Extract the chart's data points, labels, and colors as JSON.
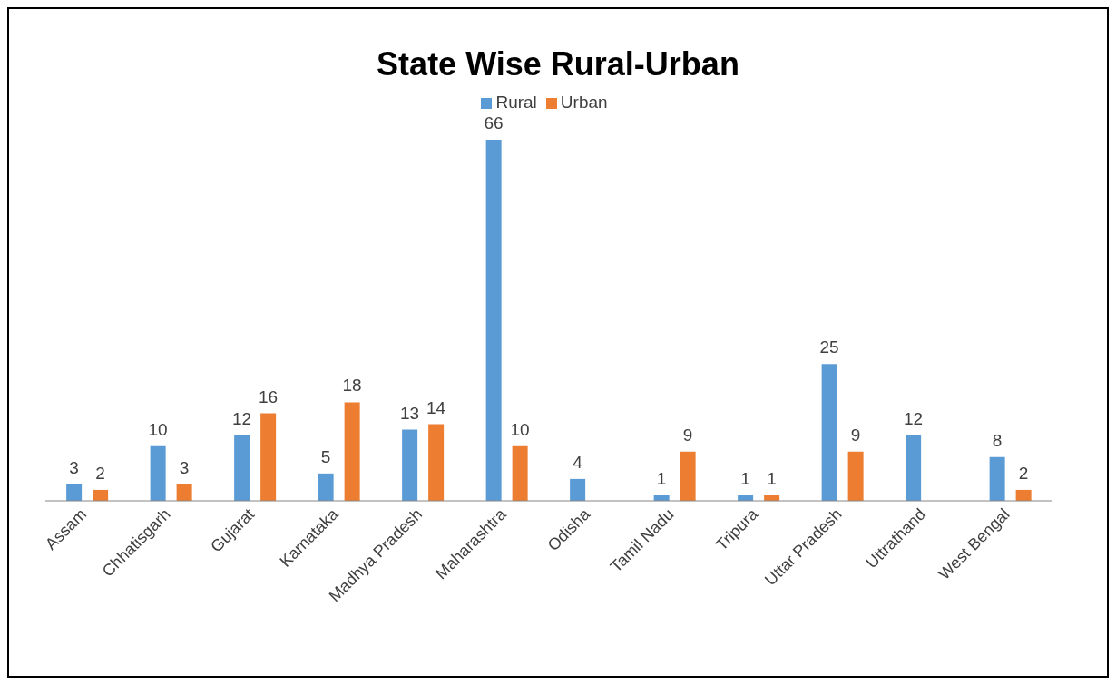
{
  "chart_data": {
    "type": "bar",
    "title": "State Wise Rural-Urban",
    "categories": [
      "Assam",
      "Chhatisgarh",
      "Gujarat",
      "Karnataka",
      "Madhya Pradesh",
      "Maharashtra",
      "Odisha",
      "Tamil Nadu",
      "Tripura",
      "Uttar Pradesh",
      "Uttrathand",
      "West Bengal"
    ],
    "series": [
      {
        "name": "Rural",
        "color": "#5b9bd5",
        "values": [
          3,
          10,
          12,
          5,
          13,
          66,
          4,
          1,
          1,
          25,
          12,
          8
        ]
      },
      {
        "name": "Urban",
        "color": "#ed7d31",
        "values": [
          2,
          3,
          16,
          18,
          14,
          10,
          null,
          9,
          1,
          9,
          null,
          2
        ]
      }
    ],
    "data_labels": true,
    "legend": "top",
    "grid": false
  }
}
